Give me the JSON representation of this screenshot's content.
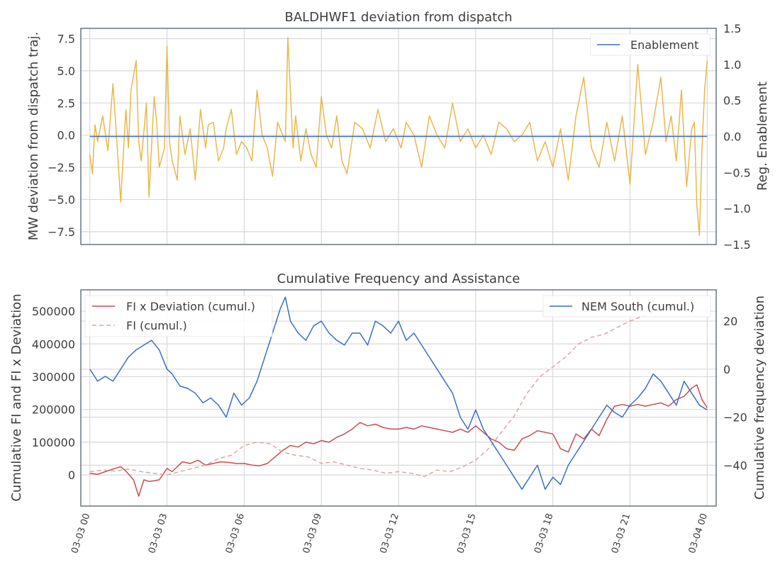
{
  "chart_data": [
    {
      "type": "line",
      "title": "BALDHWF1 deviation from dispatch",
      "ylabel_left": "MW deviation from dispatch traj.",
      "ylabel_right": "Reg. Enablement",
      "ylim_left": [
        -8.5,
        8.3
      ],
      "ylim_right": [
        -1.5,
        1.5
      ],
      "yticks_left": [
        -7.5,
        -5.0,
        -2.5,
        0.0,
        2.5,
        5.0,
        7.5
      ],
      "ytick_labels_left": [
        "−7.5",
        "−5.0",
        "−2.5",
        "0.0",
        "2.5",
        "5.0",
        "7.5"
      ],
      "yticks_right": [
        -1.5,
        -1.0,
        -0.5,
        0.0,
        0.5,
        1.0,
        1.5
      ],
      "ytick_labels_right": [
        "−1.5",
        "−1.0",
        "−0.5",
        "0.0",
        "0.5",
        "1.0",
        "1.5"
      ],
      "grid": true,
      "legend_position": "top-right",
      "x_unit": "hours from 03-03 00:00",
      "xlim": [
        -0.35,
        24.35
      ],
      "series": [
        {
          "name": "",
          "axis": "left",
          "color": "#e8b84b",
          "x": [
            0,
            0.1,
            0.2,
            0.3,
            0.5,
            0.7,
            0.9,
            1.0,
            1.2,
            1.4,
            1.5,
            1.6,
            1.8,
            1.9,
            2.0,
            2.2,
            2.3,
            2.5,
            2.6,
            2.7,
            2.9,
            3.0,
            3.1,
            3.2,
            3.4,
            3.5,
            3.7,
            3.9,
            4.1,
            4.3,
            4.5,
            4.6,
            4.8,
            5.0,
            5.2,
            5.3,
            5.5,
            5.7,
            5.9,
            6.1,
            6.3,
            6.5,
            6.7,
            6.9,
            7.1,
            7.3,
            7.5,
            7.6,
            7.7,
            7.9,
            8.0,
            8.2,
            8.4,
            8.6,
            8.8,
            9.0,
            9.2,
            9.4,
            9.6,
            9.8,
            10.0,
            10.3,
            10.6,
            10.9,
            11.2,
            11.5,
            11.8,
            12.1,
            12.3,
            12.6,
            12.9,
            13.2,
            13.5,
            13.8,
            14.1,
            14.4,
            14.7,
            15.0,
            15.3,
            15.6,
            15.9,
            16.2,
            16.5,
            16.8,
            17.1,
            17.4,
            17.7,
            18.0,
            18.3,
            18.6,
            18.9,
            19.2,
            19.5,
            19.8,
            20.1,
            20.4,
            20.7,
            21.0,
            21.3,
            21.6,
            21.9,
            22.2,
            22.4,
            22.6,
            22.8,
            23.0,
            23.2,
            23.4,
            23.5,
            23.6,
            23.7,
            23.8,
            23.9,
            24.0
          ],
          "y": [
            -1.5,
            -3.0,
            0.8,
            -0.5,
            1.5,
            -1.2,
            4.0,
            1.0,
            -5.2,
            2.0,
            -1.0,
            3.5,
            5.8,
            -0.5,
            -2.0,
            2.5,
            -4.8,
            3.0,
            1.0,
            -2.5,
            -1.0,
            6.9,
            -0.5,
            -2.0,
            -3.5,
            1.5,
            -1.5,
            0.5,
            -3.5,
            2.0,
            -1.0,
            0.8,
            1.0,
            -2.0,
            -1.0,
            0.5,
            2.0,
            -1.5,
            -0.5,
            -1.0,
            -2.0,
            3.5,
            0.0,
            -1.0,
            -3.2,
            1.0,
            0.0,
            -0.5,
            7.6,
            -1.0,
            1.5,
            -2.0,
            0.5,
            -1.5,
            -2.5,
            3.0,
            0.0,
            -1.0,
            1.5,
            -2.0,
            -3.0,
            1.0,
            0.5,
            -1.0,
            2.0,
            -0.5,
            0.5,
            -1.0,
            1.0,
            0.0,
            -2.5,
            1.5,
            0.0,
            -1.0,
            2.5,
            -0.5,
            0.5,
            -1.0,
            0.0,
            -1.5,
            1.0,
            0.5,
            -0.5,
            0.0,
            1.0,
            -2.0,
            -0.5,
            -2.5,
            0.5,
            -3.5,
            1.5,
            4.5,
            -1.0,
            -2.5,
            1.0,
            -2.0,
            1.5,
            -3.8,
            5.5,
            -1.5,
            1.0,
            4.5,
            -0.5,
            1.5,
            -2.0,
            3.5,
            -4.0,
            0.5,
            1.0,
            -5.5,
            -7.8,
            -1.0,
            3.5,
            5.8
          ]
        },
        {
          "name": "Enablement",
          "axis": "right",
          "color": "#3a6fc4",
          "x": [
            0,
            24
          ],
          "y": [
            0.0,
            0.0
          ]
        }
      ]
    },
    {
      "type": "line",
      "title": "Cumulative Frequency and Assistance",
      "ylabel_left": "Cumulative FI and FI x Deviation",
      "ylabel_right": "Cumulative frequency deviation",
      "ylim_left": [
        -95000,
        565000
      ],
      "ylim_right": [
        -57,
        33
      ],
      "yticks_left": [
        0,
        100000,
        200000,
        300000,
        400000,
        500000
      ],
      "ytick_labels_left": [
        "0",
        "100000",
        "200000",
        "300000",
        "400000",
        "500000"
      ],
      "yticks_right": [
        -40,
        -20,
        0,
        20
      ],
      "ytick_labels_right": [
        "−40",
        "−20",
        "0",
        "20"
      ],
      "grid": true,
      "legend_left_position": "top-left",
      "legend_right_position": "top-right",
      "x_unit": "hours from 03-03 00:00",
      "xlim": [
        -0.35,
        24.35
      ],
      "xtick_labels": [
        "03-03 00",
        "03-03 03",
        "03-03 06",
        "03-03 09",
        "03-03 12",
        "03-03 15",
        "03-03 18",
        "03-03 21",
        "03-04 00"
      ],
      "series": [
        {
          "name": "FI x Deviation (cumul.)",
          "axis": "left",
          "style": "solid",
          "color": "#c44e52",
          "x": [
            0,
            0.3,
            0.6,
            0.9,
            1.2,
            1.4,
            1.7,
            1.9,
            2.1,
            2.3,
            2.5,
            2.7,
            3.0,
            3.2,
            3.4,
            3.6,
            3.9,
            4.2,
            4.5,
            4.8,
            5.1,
            5.4,
            5.7,
            6.0,
            6.3,
            6.6,
            6.9,
            7.2,
            7.5,
            7.8,
            8.1,
            8.4,
            8.7,
            9.0,
            9.3,
            9.6,
            9.9,
            10.2,
            10.5,
            10.8,
            11.1,
            11.4,
            11.7,
            12.0,
            12.3,
            12.6,
            12.9,
            13.2,
            13.5,
            13.8,
            14.1,
            14.4,
            14.7,
            15.0,
            15.3,
            15.6,
            15.9,
            16.2,
            16.5,
            16.8,
            17.1,
            17.4,
            17.7,
            18.0,
            18.3,
            18.6,
            18.9,
            19.2,
            19.5,
            19.8,
            20.1,
            20.4,
            20.7,
            21.0,
            21.3,
            21.6,
            21.9,
            22.2,
            22.5,
            22.8,
            23.1,
            23.4,
            23.6,
            23.8,
            24.0
          ],
          "y": [
            5000,
            2000,
            10000,
            18000,
            25000,
            12000,
            -15000,
            -65000,
            -15000,
            -20000,
            -18000,
            -15000,
            20000,
            10000,
            25000,
            40000,
            35000,
            45000,
            30000,
            35000,
            40000,
            38000,
            35000,
            35000,
            30000,
            28000,
            35000,
            55000,
            75000,
            90000,
            85000,
            100000,
            95000,
            105000,
            100000,
            115000,
            125000,
            140000,
            160000,
            150000,
            155000,
            145000,
            140000,
            140000,
            145000,
            140000,
            150000,
            145000,
            140000,
            135000,
            130000,
            140000,
            130000,
            150000,
            130000,
            110000,
            100000,
            80000,
            75000,
            110000,
            120000,
            135000,
            130000,
            125000,
            80000,
            70000,
            125000,
            110000,
            140000,
            120000,
            170000,
            210000,
            215000,
            210000,
            215000,
            210000,
            215000,
            220000,
            210000,
            230000,
            240000,
            265000,
            275000,
            230000,
            205000
          ]
        },
        {
          "name": "FI (cumul.)",
          "axis": "left",
          "style": "dashed",
          "color": "#e0a4a6",
          "x": [
            0,
            0.5,
            1.0,
            1.5,
            2.0,
            2.5,
            3.0,
            3.5,
            4.0,
            4.5,
            5.0,
            5.5,
            6.0,
            6.5,
            7.0,
            7.5,
            8.0,
            8.5,
            9.0,
            9.5,
            10.0,
            10.5,
            11.0,
            11.5,
            12.0,
            12.5,
            13.0,
            13.5,
            14.0,
            14.5,
            15.0,
            15.5,
            16.0,
            16.5,
            17.0,
            17.5,
            18.0,
            18.5,
            19.0,
            19.5,
            20.0,
            20.5,
            21.0,
            21.5,
            22.0,
            22.5,
            23.0,
            23.3
          ],
          "y": [
            10000,
            15000,
            12000,
            18000,
            10000,
            5000,
            0,
            10000,
            20000,
            30000,
            50000,
            60000,
            90000,
            100000,
            95000,
            70000,
            60000,
            55000,
            35000,
            40000,
            30000,
            20000,
            15000,
            5000,
            10000,
            5000,
            -5000,
            15000,
            10000,
            25000,
            45000,
            80000,
            130000,
            180000,
            250000,
            300000,
            330000,
            360000,
            400000,
            420000,
            430000,
            450000,
            470000,
            485000,
            500000,
            510000,
            525000,
            530000
          ]
        },
        {
          "name": "NEM South (cumul.)",
          "axis": "right",
          "style": "solid",
          "color": "#3a6fc4",
          "x": [
            0,
            0.3,
            0.6,
            0.9,
            1.2,
            1.5,
            1.8,
            2.1,
            2.4,
            2.7,
            3.0,
            3.2,
            3.5,
            3.8,
            4.1,
            4.4,
            4.7,
            5.0,
            5.3,
            5.6,
            5.9,
            6.2,
            6.5,
            6.8,
            7.1,
            7.4,
            7.6,
            7.8,
            8.1,
            8.4,
            8.7,
            9.0,
            9.3,
            9.6,
            9.9,
            10.2,
            10.5,
            10.8,
            11.1,
            11.4,
            11.7,
            12.0,
            12.3,
            12.6,
            12.9,
            13.2,
            13.5,
            13.8,
            14.1,
            14.4,
            14.7,
            15.0,
            15.3,
            15.6,
            15.9,
            16.2,
            16.5,
            16.8,
            17.1,
            17.4,
            17.7,
            18.0,
            18.3,
            18.6,
            18.9,
            19.2,
            19.5,
            19.8,
            20.1,
            20.4,
            20.7,
            21.0,
            21.3,
            21.6,
            21.9,
            22.2,
            22.5,
            22.8,
            23.1,
            23.4,
            23.7,
            24.0
          ],
          "y": [
            0,
            -5,
            -3,
            -5,
            0,
            5,
            8,
            10,
            12,
            8,
            0,
            -2,
            -7,
            -8,
            -10,
            -14,
            -12,
            -15,
            -20,
            -10,
            -15,
            -12,
            -5,
            5,
            15,
            25,
            30,
            20,
            15,
            12,
            18,
            20,
            15,
            12,
            10,
            15,
            15,
            10,
            20,
            18,
            15,
            20,
            12,
            15,
            10,
            5,
            0,
            -5,
            -10,
            -20,
            -25,
            -17,
            -25,
            -30,
            -35,
            -40,
            -45,
            -50,
            -45,
            -40,
            -50,
            -45,
            -48,
            -40,
            -35,
            -30,
            -25,
            -20,
            -15,
            -18,
            -20,
            -15,
            -12,
            -8,
            -2,
            -5,
            -10,
            -15,
            -5,
            -10,
            -15,
            -17
          ]
        }
      ]
    }
  ]
}
